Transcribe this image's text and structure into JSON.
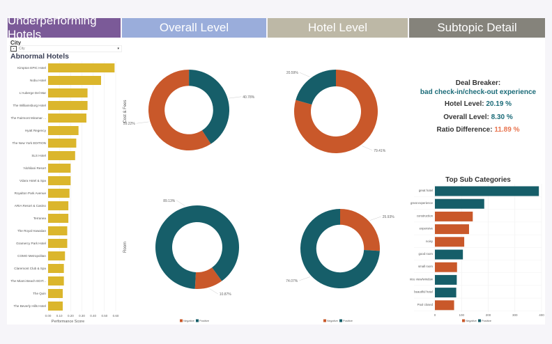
{
  "header": {
    "tabs": [
      {
        "label": "Underperforming Hotels",
        "color": "#7b5a98"
      },
      {
        "label": "Overall Level",
        "color": "#9aaddb"
      },
      {
        "label": "Hotel Level",
        "color": "#bdb8a6"
      },
      {
        "label": "Subtopic Detail",
        "color": "#85837b"
      }
    ]
  },
  "filter": {
    "label": "City",
    "placeholder": "City"
  },
  "abnormal_hotels": {
    "title": "Abnormal Hotels",
    "chart_data": {
      "type": "bar",
      "orientation": "horizontal",
      "categories": [
        "Kimpton EPIC Hotel",
        "Nobu Hotel",
        "L'Auberge Del Mar",
        "The Williamsburg Hotel",
        "The Fairmont Miramar ...",
        "Hyatt Regency",
        "The New York EDITION",
        "SLS Hotel",
        "'Alohilani Resort",
        "Vdara Hotel & Spa",
        "Royalton Park Avenue",
        "ARIA Resort & Casino",
        "Terranea",
        "The Royal Hawaiian",
        "Gramercy Park Hotel",
        "COMO Metropolitan",
        "Claremont Club & Spa",
        "The Miami Beach EDIT...",
        "The Quin",
        "The Beverly Hills Hotel"
      ],
      "values": [
        0.59,
        0.47,
        0.35,
        0.35,
        0.34,
        0.27,
        0.25,
        0.24,
        0.2,
        0.2,
        0.19,
        0.18,
        0.18,
        0.17,
        0.17,
        0.15,
        0.14,
        0.14,
        0.13,
        0.13
      ],
      "xlabel": "Performance Score",
      "xlim": [
        0,
        0.6
      ],
      "ticks": [
        "0.00",
        "0.10",
        "0.20",
        "0.30",
        "0.40",
        "0.50",
        "0.60"
      ],
      "color": "#dbb62c",
      "grid": true
    }
  },
  "donuts": {
    "row_labels": [
      "Cost & Fees",
      "Room"
    ],
    "legend": [
      "Negative",
      "Positive"
    ],
    "colors": {
      "Negative": "#c9582a",
      "Positive": "#165e69"
    },
    "chart_data": [
      {
        "type": "pie",
        "level": "Overall",
        "topic": "Cost & Fees",
        "slices": [
          {
            "name": "Negative",
            "value": 59.22,
            "label": "59.22%"
          },
          {
            "name": "Positive",
            "value": 40.78,
            "label": "40.78%"
          }
        ]
      },
      {
        "type": "pie",
        "level": "Hotel",
        "topic": "Cost & Fees",
        "slices": [
          {
            "name": "Negative",
            "value": 79.41,
            "label": "79.41%"
          },
          {
            "name": "Positive",
            "value": 20.59,
            "label": "20.59%"
          }
        ]
      },
      {
        "type": "pie",
        "level": "Overall",
        "topic": "Room",
        "slices": [
          {
            "name": "Negative",
            "value": 10.87,
            "label": "10.87%"
          },
          {
            "name": "Positive",
            "value": 89.13,
            "label": "89.13%"
          }
        ]
      },
      {
        "type": "pie",
        "level": "Hotel",
        "topic": "Room",
        "slices": [
          {
            "name": "Negative",
            "value": 25.93,
            "label": "25.93%"
          },
          {
            "name": "Positive",
            "value": 74.07,
            "label": "74.07%"
          }
        ]
      }
    ]
  },
  "detail": {
    "deal_breaker_label": "Deal Breaker:",
    "deal_breaker_value": "bad check-in/check-out experience",
    "hotel_level_label": "Hotel Level:",
    "hotel_level_value": "20.19 %",
    "overall_level_label": "Overall Level:",
    "overall_level_value": "8.30 %",
    "ratio_label": "Ratio Difference:",
    "ratio_value": "11.89 %"
  },
  "subcategories": {
    "title": "Top Sub Categories",
    "chart_data": {
      "type": "bar",
      "orientation": "horizontal",
      "categories": [
        "great hotel",
        "great experience",
        "construction",
        "expensive",
        "noisy",
        "good room",
        "small room",
        "nice view/window",
        "beautiful hotel",
        "Pool closed"
      ],
      "values": [
        390,
        185,
        142,
        128,
        110,
        105,
        83,
        82,
        80,
        72
      ],
      "sentiment": [
        "Positive",
        "Positive",
        "Negative",
        "Negative",
        "Negative",
        "Positive",
        "Negative",
        "Positive",
        "Positive",
        "Negative"
      ],
      "xlim": [
        0,
        400
      ],
      "ticks": [
        "0",
        "100",
        "200",
        "300",
        "400"
      ],
      "legend": [
        "Negative",
        "Positive"
      ],
      "grid": true
    }
  }
}
